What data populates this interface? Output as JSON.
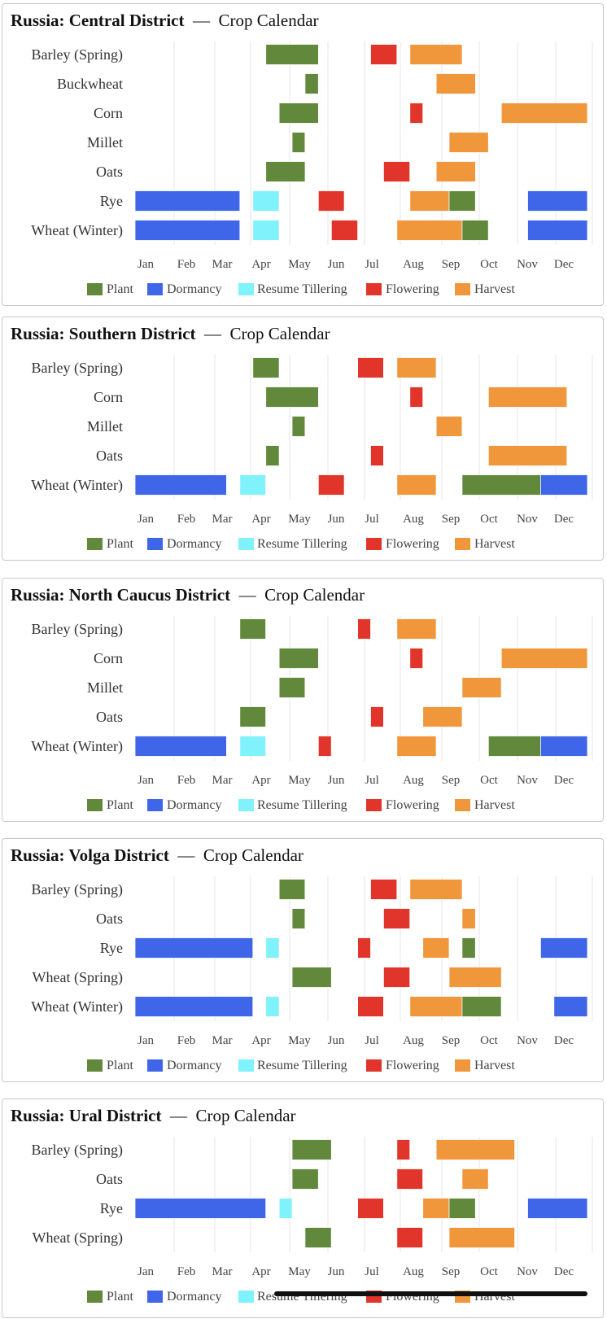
{
  "title_separator": "—",
  "chart_suffix": "Crop Calendar",
  "months": [
    "Jan",
    "Feb",
    "Mar",
    "Apr",
    "May",
    "Jun",
    "Jul",
    "Aug",
    "Sep",
    "Oct",
    "Nov",
    "Dec"
  ],
  "legend": [
    {
      "key": "plant",
      "label": "Plant",
      "color": "#61883b"
    },
    {
      "key": "dormancy",
      "label": "Dormancy",
      "color": "#3f66e8"
    },
    {
      "key": "tillering",
      "label": "Resume Tillering",
      "color": "#7ff2fb"
    },
    {
      "key": "flowering",
      "label": "Flowering",
      "color": "#e1352b"
    },
    {
      "key": "harvest",
      "label": "Harvest",
      "color": "#f0963b"
    }
  ],
  "chart_data": [
    {
      "type": "gantt",
      "title": "Russia: Central District",
      "x_unit": "month",
      "xlim": [
        0,
        12
      ],
      "crops": [
        {
          "name": "Barley (Spring)",
          "segments": [
            [
              "plant",
              4.33,
              5.67
            ],
            [
              "flowering",
              7.0,
              7.67
            ],
            [
              "harvest",
              8.0,
              9.33
            ]
          ]
        },
        {
          "name": "Buckwheat",
          "segments": [
            [
              "plant",
              5.33,
              5.67
            ],
            [
              "harvest",
              8.67,
              9.67
            ]
          ]
        },
        {
          "name": "Corn",
          "segments": [
            [
              "plant",
              4.67,
              5.67
            ],
            [
              "flowering",
              8.0,
              8.33
            ],
            [
              "harvest",
              10.33,
              12.67
            ]
          ]
        },
        {
          "name": "Millet",
          "segments": [
            [
              "plant",
              5.0,
              5.33
            ],
            [
              "harvest",
              9.0,
              10.0
            ]
          ]
        },
        {
          "name": "Oats",
          "segments": [
            [
              "plant",
              4.33,
              5.33
            ],
            [
              "flowering",
              7.33,
              8.0
            ],
            [
              "harvest",
              8.67,
              9.67
            ]
          ]
        },
        {
          "name": "Rye",
          "segments": [
            [
              "dormancy",
              1.0,
              3.67
            ],
            [
              "tillering",
              4.0,
              4.67
            ],
            [
              "flowering",
              5.67,
              6.33
            ],
            [
              "harvest",
              8.0,
              9.0
            ],
            [
              "plant",
              9.0,
              9.67
            ],
            [
              "dormancy",
              11.0,
              13.67
            ]
          ]
        },
        {
          "name": "Wheat (Winter)",
          "segments": [
            [
              "dormancy",
              1.0,
              3.67
            ],
            [
              "tillering",
              4.0,
              4.67
            ],
            [
              "flowering",
              6.0,
              6.67
            ],
            [
              "harvest",
              7.67,
              9.33
            ],
            [
              "plant",
              9.33,
              10.0
            ],
            [
              "dormancy",
              11.0,
              13.67
            ]
          ]
        }
      ]
    },
    {
      "type": "gantt",
      "title": "Russia: Southern District",
      "x_unit": "month",
      "xlim": [
        0,
        12
      ],
      "crops": [
        {
          "name": "Barley (Spring)",
          "segments": [
            [
              "plant",
              4.0,
              4.67
            ],
            [
              "flowering",
              6.67,
              7.33
            ],
            [
              "harvest",
              7.67,
              8.67
            ]
          ]
        },
        {
          "name": "Corn",
          "segments": [
            [
              "plant",
              4.33,
              5.67
            ],
            [
              "flowering",
              8.0,
              8.33
            ],
            [
              "harvest",
              10.0,
              12.0
            ]
          ]
        },
        {
          "name": "Millet",
          "segments": [
            [
              "plant",
              5.0,
              5.33
            ],
            [
              "harvest",
              8.67,
              9.33
            ]
          ]
        },
        {
          "name": "Oats",
          "segments": [
            [
              "plant",
              4.33,
              4.67
            ],
            [
              "flowering",
              7.0,
              7.33
            ],
            [
              "harvest",
              10.0,
              12.0
            ]
          ]
        },
        {
          "name": "Wheat (Winter)",
          "segments": [
            [
              "dormancy",
              1.0,
              3.33
            ],
            [
              "tillering",
              3.67,
              4.33
            ],
            [
              "flowering",
              5.67,
              6.33
            ],
            [
              "harvest",
              7.67,
              8.67
            ],
            [
              "plant",
              9.33,
              11.33
            ],
            [
              "dormancy",
              11.33,
              13.67
            ]
          ]
        }
      ]
    },
    {
      "type": "gantt",
      "title": "Russia: North Caucus District",
      "x_unit": "month",
      "xlim": [
        0,
        12
      ],
      "crops": [
        {
          "name": "Barley (Spring)",
          "segments": [
            [
              "plant",
              3.67,
              4.33
            ],
            [
              "flowering",
              6.67,
              7.0
            ],
            [
              "harvest",
              7.67,
              8.67
            ]
          ]
        },
        {
          "name": "Corn",
          "segments": [
            [
              "plant",
              4.67,
              5.67
            ],
            [
              "flowering",
              8.0,
              8.33
            ],
            [
              "harvest",
              10.33,
              12.67
            ]
          ]
        },
        {
          "name": "Millet",
          "segments": [
            [
              "plant",
              4.67,
              5.33
            ],
            [
              "harvest",
              9.33,
              10.33
            ]
          ]
        },
        {
          "name": "Oats",
          "segments": [
            [
              "plant",
              3.67,
              4.33
            ],
            [
              "flowering",
              7.0,
              7.33
            ],
            [
              "harvest",
              8.33,
              9.33
            ]
          ]
        },
        {
          "name": "Wheat (Winter)",
          "segments": [
            [
              "dormancy",
              1.0,
              3.33
            ],
            [
              "tillering",
              3.67,
              4.33
            ],
            [
              "flowering",
              5.67,
              6.0
            ],
            [
              "harvest",
              7.67,
              8.67
            ],
            [
              "plant",
              10.0,
              11.33
            ],
            [
              "dormancy",
              11.33,
              13.67
            ]
          ]
        }
      ]
    },
    {
      "type": "gantt",
      "title": "Russia: Volga District",
      "x_unit": "month",
      "xlim": [
        0,
        12
      ],
      "crops": [
        {
          "name": "Barley (Spring)",
          "segments": [
            [
              "plant",
              4.67,
              5.33
            ],
            [
              "flowering",
              7.0,
              7.67
            ],
            [
              "harvest",
              8.0,
              9.33
            ]
          ]
        },
        {
          "name": "Oats",
          "segments": [
            [
              "plant",
              5.0,
              5.33
            ],
            [
              "flowering",
              7.33,
              8.0
            ],
            [
              "harvest",
              9.33,
              9.67
            ]
          ]
        },
        {
          "name": "Rye",
          "segments": [
            [
              "dormancy",
              1.0,
              4.0
            ],
            [
              "tillering",
              4.33,
              4.67
            ],
            [
              "flowering",
              6.67,
              7.0
            ],
            [
              "harvest",
              8.33,
              9.0
            ],
            [
              "plant",
              9.33,
              9.67
            ],
            [
              "dormancy",
              11.33,
              13.67
            ]
          ]
        },
        {
          "name": "Wheat (Spring)",
          "segments": [
            [
              "plant",
              5.0,
              6.0
            ],
            [
              "flowering",
              7.33,
              8.0
            ],
            [
              "harvest",
              9.0,
              10.33
            ]
          ]
        },
        {
          "name": "Wheat (Winter)",
          "segments": [
            [
              "dormancy",
              1.0,
              4.0
            ],
            [
              "tillering",
              4.33,
              4.67
            ],
            [
              "flowering",
              6.67,
              7.33
            ],
            [
              "harvest",
              8.0,
              9.33
            ],
            [
              "plant",
              9.33,
              10.33
            ],
            [
              "dormancy",
              11.67,
              13.67
            ]
          ]
        }
      ]
    },
    {
      "type": "gantt",
      "title": "Russia: Ural District",
      "x_unit": "month",
      "xlim": [
        0,
        12
      ],
      "crops": [
        {
          "name": "Barley (Spring)",
          "segments": [
            [
              "plant",
              5.0,
              6.0
            ],
            [
              "flowering",
              7.67,
              8.0
            ],
            [
              "harvest",
              8.67,
              10.67
            ]
          ]
        },
        {
          "name": "Oats",
          "segments": [
            [
              "plant",
              5.0,
              5.67
            ],
            [
              "flowering",
              7.67,
              8.33
            ],
            [
              "harvest",
              9.33,
              10.0
            ]
          ]
        },
        {
          "name": "Rye",
          "segments": [
            [
              "dormancy",
              1.0,
              4.33
            ],
            [
              "tillering",
              4.67,
              5.0
            ],
            [
              "flowering",
              6.67,
              7.33
            ],
            [
              "harvest",
              8.33,
              9.0
            ],
            [
              "plant",
              9.0,
              9.67
            ],
            [
              "dormancy",
              11.0,
              13.67
            ]
          ]
        },
        {
          "name": "Wheat (Spring)",
          "segments": [
            [
              "plant",
              5.33,
              6.0
            ],
            [
              "flowering",
              7.67,
              8.33
            ],
            [
              "harvest",
              9.0,
              10.67
            ]
          ]
        }
      ]
    }
  ]
}
